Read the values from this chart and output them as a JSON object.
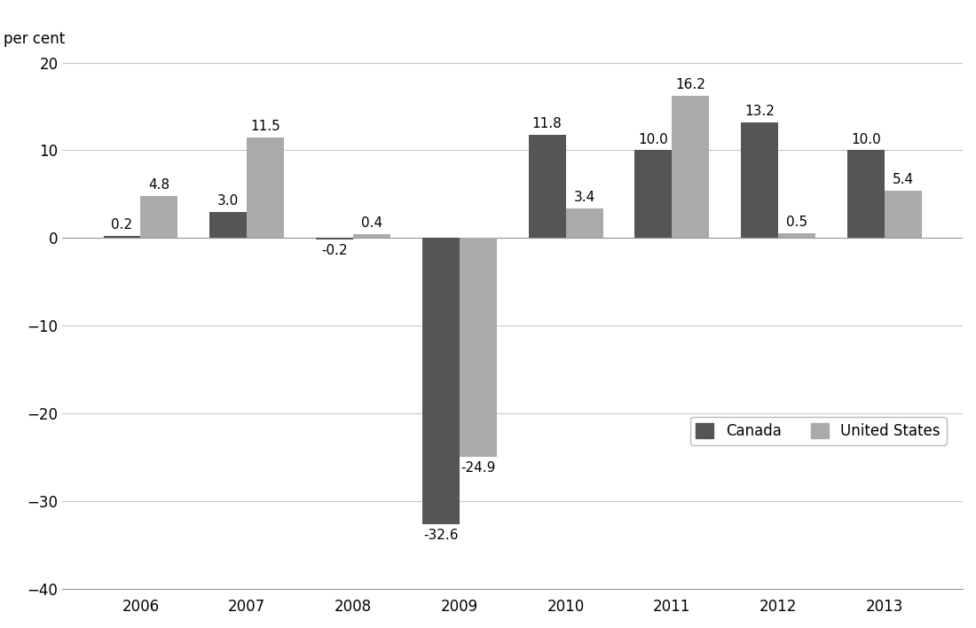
{
  "years": [
    "2006",
    "2007",
    "2008",
    "2009",
    "2010",
    "2011",
    "2012",
    "2013"
  ],
  "canada": [
    0.2,
    3.0,
    -0.2,
    -32.6,
    11.8,
    10.0,
    13.2,
    10.0
  ],
  "us": [
    4.8,
    11.5,
    0.4,
    -24.9,
    3.4,
    16.2,
    0.5,
    5.4
  ],
  "canada_color": "#555555",
  "us_color": "#aaaaaa",
  "ylabel": "per cent",
  "ylim": [
    -40,
    20
  ],
  "yticks": [
    -40,
    -30,
    -20,
    -10,
    0,
    10,
    20
  ],
  "bar_width": 0.35,
  "legend_labels": [
    "Canada",
    "United States"
  ],
  "background_color": "#ffffff",
  "grid_color": "#c8c8c8",
  "label_fontsize": 11,
  "tick_fontsize": 12,
  "ylabel_fontsize": 12
}
